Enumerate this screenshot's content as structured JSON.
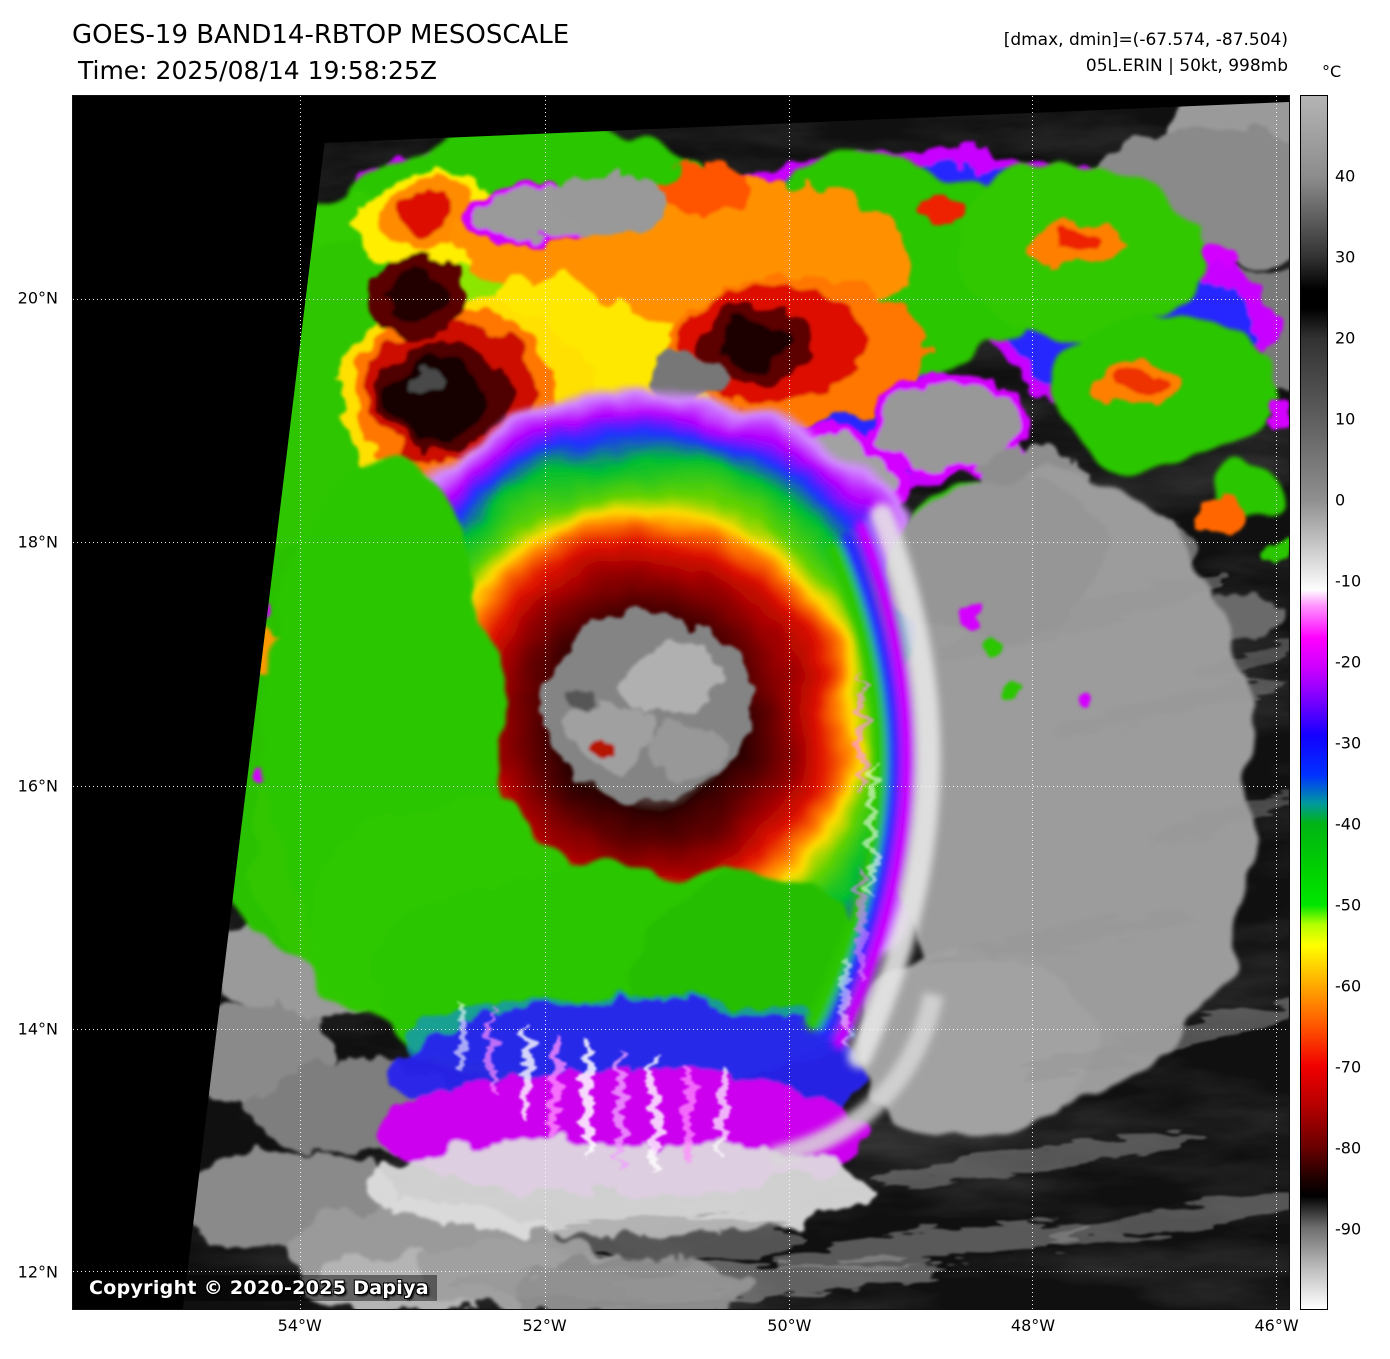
{
  "header": {
    "title": "GOES-19 BAND14-RBTOP MESOSCALE",
    "time": "Time: 2025/08/14 19:58:25Z",
    "range_info": "[dmax, dmin]=(-67.574, -87.504)",
    "storm_info": "05L.ERIN | 50kt, 998mb"
  },
  "colorbar": {
    "unit": "°C",
    "ticks": [
      {
        "label": "40",
        "pct": 6.7
      },
      {
        "label": "30",
        "pct": 13.3
      },
      {
        "label": "20",
        "pct": 20
      },
      {
        "label": "10",
        "pct": 26.7
      },
      {
        "label": "0",
        "pct": 33.3
      },
      {
        "label": "-10",
        "pct": 40
      },
      {
        "label": "-20",
        "pct": 46.7
      },
      {
        "label": "-30",
        "pct": 53.3
      },
      {
        "label": "-40",
        "pct": 60
      },
      {
        "label": "-50",
        "pct": 66.7
      },
      {
        "label": "-60",
        "pct": 73.3
      },
      {
        "label": "-70",
        "pct": 80
      },
      {
        "label": "-80",
        "pct": 86.7
      },
      {
        "label": "-90",
        "pct": 93.3
      }
    ],
    "gradient_stops": [
      [
        0,
        "#b4b4b4"
      ],
      [
        6.7,
        "#8c8c8c"
      ],
      [
        13.3,
        "#323232"
      ],
      [
        16,
        "#000000"
      ],
      [
        17.5,
        "#000000"
      ],
      [
        20,
        "#323232"
      ],
      [
        26.7,
        "#5f5f5f"
      ],
      [
        33.3,
        "#8f8f8f"
      ],
      [
        40.7,
        "#fdfdfd"
      ],
      [
        42,
        "#ff96ff"
      ],
      [
        44.7,
        "#ff00ff"
      ],
      [
        47.3,
        "#c800ff"
      ],
      [
        50,
        "#7300ff"
      ],
      [
        52.7,
        "#1400ff"
      ],
      [
        56,
        "#0032ff"
      ],
      [
        58.3,
        "#00999e"
      ],
      [
        60,
        "#00b414"
      ],
      [
        64,
        "#00d200"
      ],
      [
        66.7,
        "#00e600"
      ],
      [
        68.3,
        "#b4ff00"
      ],
      [
        70,
        "#ffff00"
      ],
      [
        73.3,
        "#ffaa00"
      ],
      [
        76.7,
        "#ff5500"
      ],
      [
        80,
        "#f00000"
      ],
      [
        83.3,
        "#b40000"
      ],
      [
        86.7,
        "#690000"
      ],
      [
        89.3,
        "#1e0000"
      ],
      [
        90.7,
        "#000000"
      ],
      [
        93.3,
        "#6e6e6e"
      ],
      [
        96.7,
        "#bebebe"
      ],
      [
        100,
        "#ffffff"
      ]
    ]
  },
  "axes": {
    "lat": [
      {
        "label": "20°N",
        "pct": 16.7
      },
      {
        "label": "18°N",
        "pct": 36.8
      },
      {
        "label": "16°N",
        "pct": 56.9
      },
      {
        "label": "14°N",
        "pct": 76.9
      },
      {
        "label": "12°N",
        "pct": 96.9
      }
    ],
    "lon": [
      {
        "label": "54°W",
        "pct": 18.7
      },
      {
        "label": "52°W",
        "pct": 38.8
      },
      {
        "label": "50°W",
        "pct": 58.9
      },
      {
        "label": "48°W",
        "pct": 78.9
      },
      {
        "label": "46°W",
        "pct": 98.9
      }
    ]
  },
  "copyright": "Copyright © 2020-2025 Dapiya"
}
